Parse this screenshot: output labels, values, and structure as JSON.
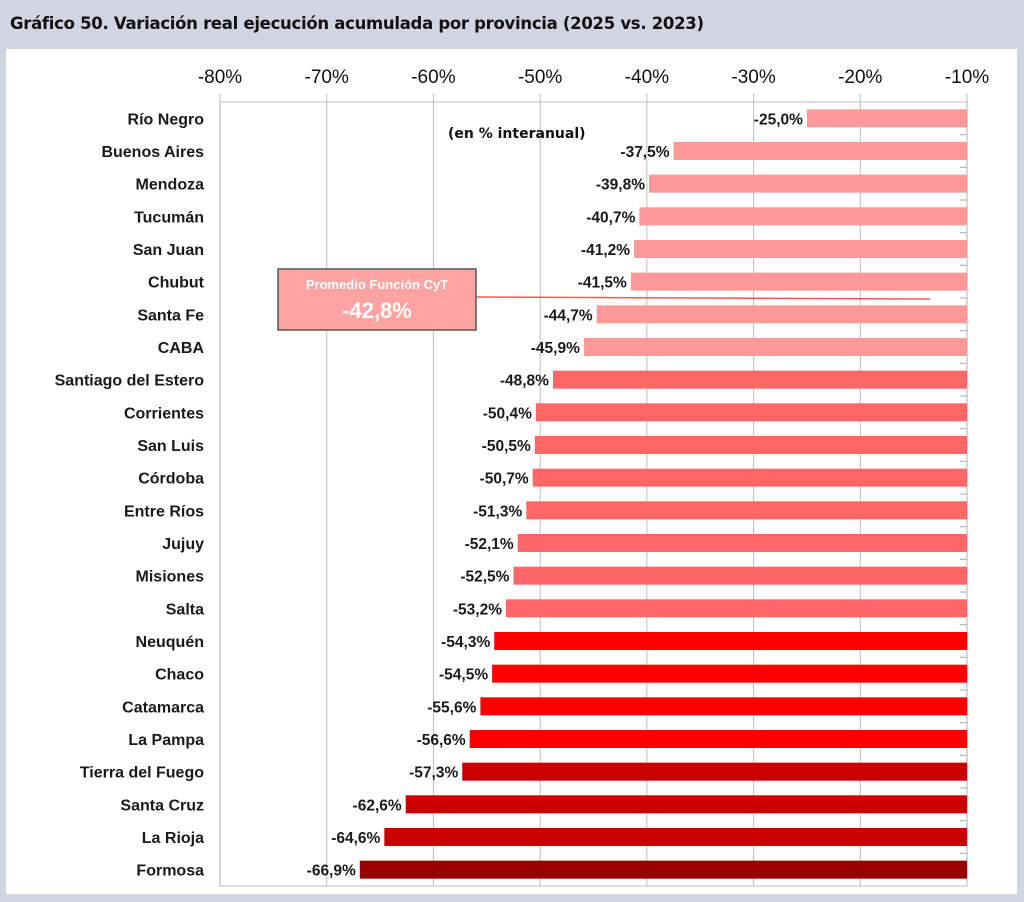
{
  "chart_data": {
    "type": "bar",
    "orientation": "horizontal",
    "title": "Gráfico 50. Variación real ejecución acumulada por provincia (2025 vs. 2023)",
    "subtitle": "(en % interanual)",
    "xlabel": "",
    "ylabel": "",
    "xlim": [
      -80,
      -10
    ],
    "x_ticks": [
      -80,
      -70,
      -60,
      -50,
      -40,
      -30,
      -20,
      -10
    ],
    "x_tick_labels": [
      "-80%",
      "-70%",
      "-60%",
      "-50%",
      "-40%",
      "-30%",
      "-20%",
      "-10%"
    ],
    "x_axis_position": "top",
    "grid": true,
    "categories": [
      "Río Negro",
      "Buenos Aires",
      "Mendoza",
      "Tucumán",
      "San Juan",
      "Chubut",
      "Santa Fe",
      "CABA",
      "Santiago del Estero",
      "Corrientes",
      "San Luis",
      "Córdoba",
      "Entre Ríos",
      "Jujuy",
      "Misiones",
      "Salta",
      "Neuquén",
      "Chaco",
      "Catamarca",
      "La Pampa",
      "Tierra del Fuego",
      "Santa Cruz",
      "La Rioja",
      "Formosa"
    ],
    "values": [
      -25.0,
      -37.5,
      -39.8,
      -40.7,
      -41.2,
      -41.5,
      -44.7,
      -45.9,
      -48.8,
      -50.4,
      -50.5,
      -50.7,
      -51.3,
      -52.1,
      -52.5,
      -53.2,
      -54.3,
      -54.5,
      -55.6,
      -56.6,
      -57.3,
      -62.6,
      -64.6,
      -66.9
    ],
    "value_labels": [
      "-25,0%",
      "-37,5%",
      "-39,8%",
      "-40,7%",
      "-41,2%",
      "-41,5%",
      "-44,7%",
      "-45,9%",
      "-48,8%",
      "-50,4%",
      "-50,5%",
      "-50,7%",
      "-51,3%",
      "-52,1%",
      "-52,5%",
      "-53,2%",
      "-54,3%",
      "-54,5%",
      "-55,6%",
      "-56,6%",
      "-57,3%",
      "-62,6%",
      "-64,6%",
      "-66,9%"
    ],
    "bar_colors": [
      "#FF9999",
      "#FF9999",
      "#FF9999",
      "#FF9999",
      "#FF9999",
      "#FF9999",
      "#FF9999",
      "#FF9999",
      "#FF6666",
      "#FF6666",
      "#FF6666",
      "#FF6666",
      "#FF6666",
      "#FF6666",
      "#FF6666",
      "#FF6666",
      "#FF0000",
      "#FF0000",
      "#FF0000",
      "#FF0000",
      "#CC0000",
      "#CC0000",
      "#CC0000",
      "#990000"
    ],
    "reference_line": {
      "label": "Promedio Función CyT",
      "value": -42.8,
      "value_label": "-42,8%",
      "color": "#FF5555",
      "box_color": "#FFA3A3"
    }
  }
}
